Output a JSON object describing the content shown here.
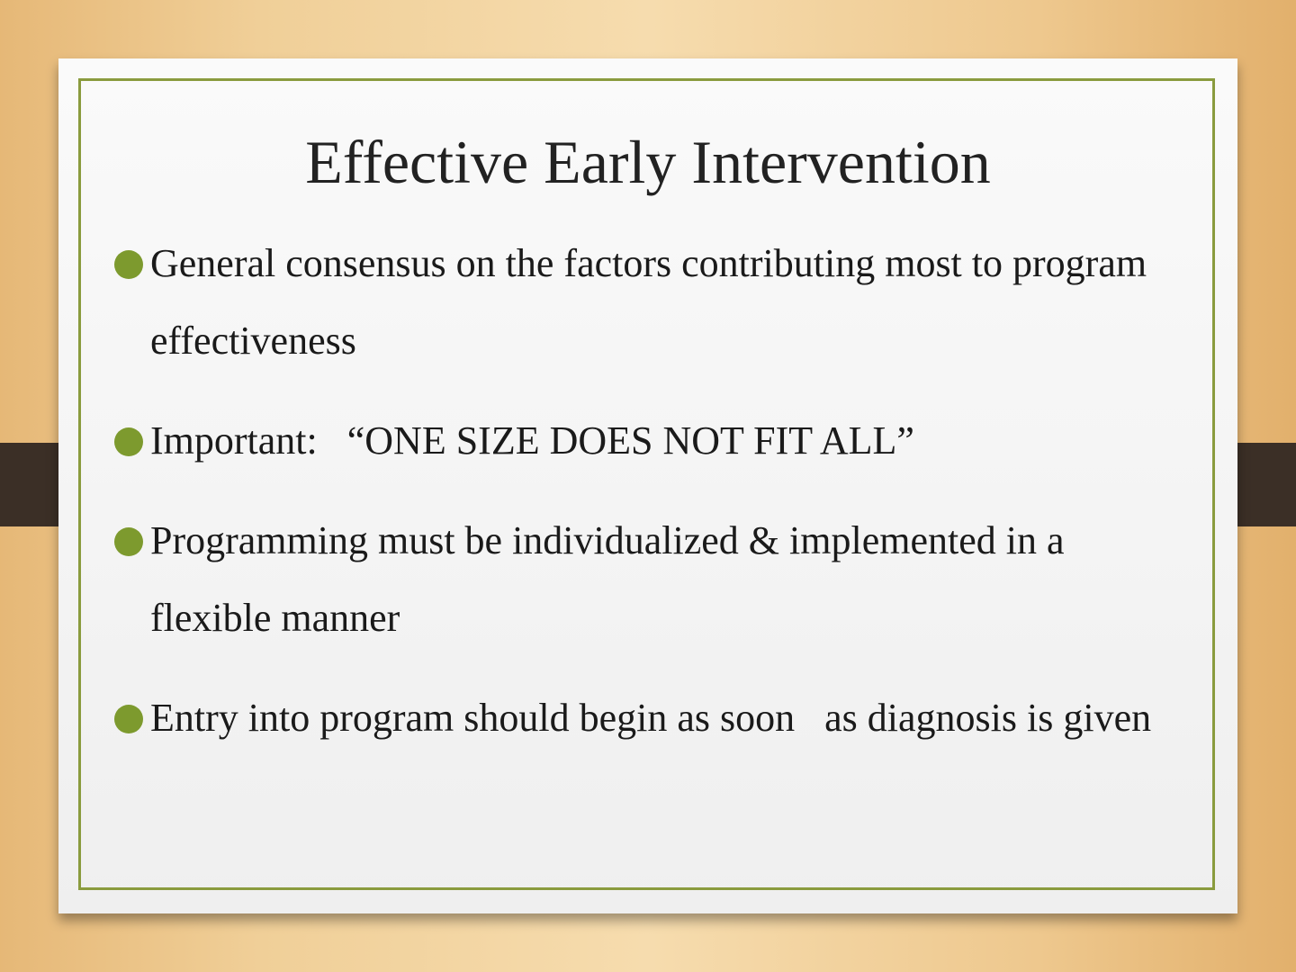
{
  "slide": {
    "title": "Effective Early Intervention",
    "bullets": [
      "General consensus on the factors contributing most to program effectiveness",
      "Important:   “ONE SIZE DOES NOT FIT ALL”",
      "Programming must be individualized & implemented in a flexible manner",
      "Entry into program should begin as soon   as diagnosis is given"
    ]
  }
}
